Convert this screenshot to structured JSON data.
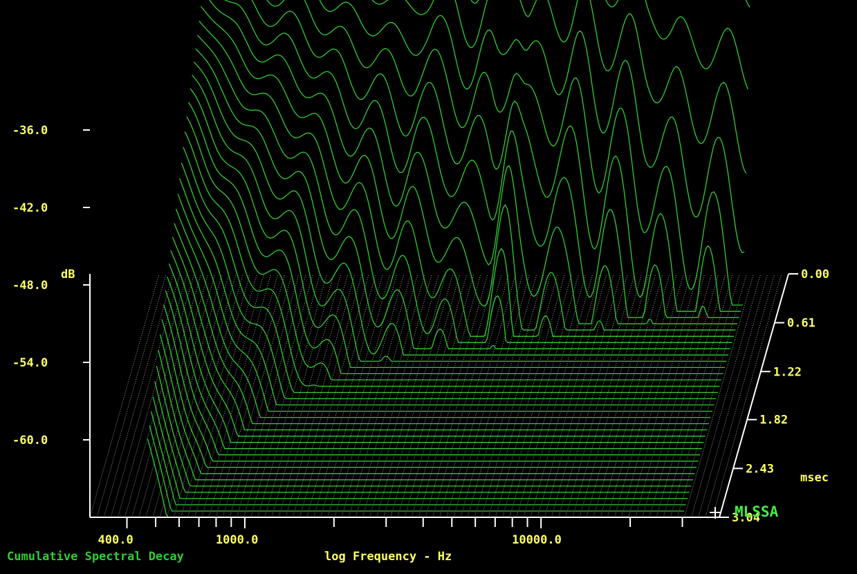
{
  "chart_data": {
    "type": "waterfall",
    "title": "Cumulative Spectral Decay",
    "xlabel": "log Frequency - Hz",
    "ylabel": "dB",
    "time_unit": "msec",
    "brand": "MLSSA",
    "x_scale": "log",
    "xlim": [
      300,
      40000
    ],
    "ylim": [
      -66,
      -30
    ],
    "time_range": [
      0,
      3.04
    ],
    "x_ticks_labeled": [
      {
        "value": 400,
        "label": "400.0"
      },
      {
        "value": 1000,
        "label": "1000.0"
      },
      {
        "value": 10000,
        "label": "10000.0"
      }
    ],
    "x_ticks_minor": [
      500,
      600,
      700,
      800,
      900,
      2000,
      3000,
      4000,
      5000,
      6000,
      7000,
      8000,
      9000,
      20000,
      30000
    ],
    "y_ticks": [
      {
        "value": -36,
        "label": "-36.0"
      },
      {
        "value": -42,
        "label": "-42.0"
      },
      {
        "value": -48,
        "label": "-48.0"
      },
      {
        "value": -54,
        "label": "-54.0"
      },
      {
        "value": -60,
        "label": "-60.0"
      }
    ],
    "time_ticks": [
      {
        "value": 0.0,
        "label": "0.00"
      },
      {
        "value": 0.61,
        "label": "0.61"
      },
      {
        "value": 1.22,
        "label": "1.22"
      },
      {
        "value": 1.82,
        "label": "1.82"
      },
      {
        "value": 2.43,
        "label": "2.43"
      },
      {
        "value": 3.04,
        "label": "3.04"
      }
    ],
    "slices": 40,
    "initial_response": {
      "freq_hz": [
        470,
        600,
        800,
        1000,
        1300,
        1600,
        2000,
        2500,
        3000,
        3600,
        4300,
        5000,
        5600,
        6500,
        7500,
        8500,
        10000,
        12000,
        14000,
        17000,
        20000,
        25000,
        30000
      ],
      "db": [
        -35.0,
        -36.0,
        -36.4,
        -35.6,
        -37.2,
        -36.8,
        -37.6,
        -36.4,
        -35.6,
        -37.8,
        -35.2,
        -32.2,
        -35.8,
        -33.8,
        -34.8,
        -33.4,
        -35.6,
        -34.6,
        -36.4,
        -37.8,
        -38.6,
        -38.2,
        -39.6
      ]
    },
    "colors": {
      "background": "#000000",
      "axes_text": "#ffff66",
      "axes_lines": "#ffffff",
      "floor_grid": "#c8c8c8",
      "traces": "#33cc33",
      "brand": "#44ee44"
    }
  }
}
